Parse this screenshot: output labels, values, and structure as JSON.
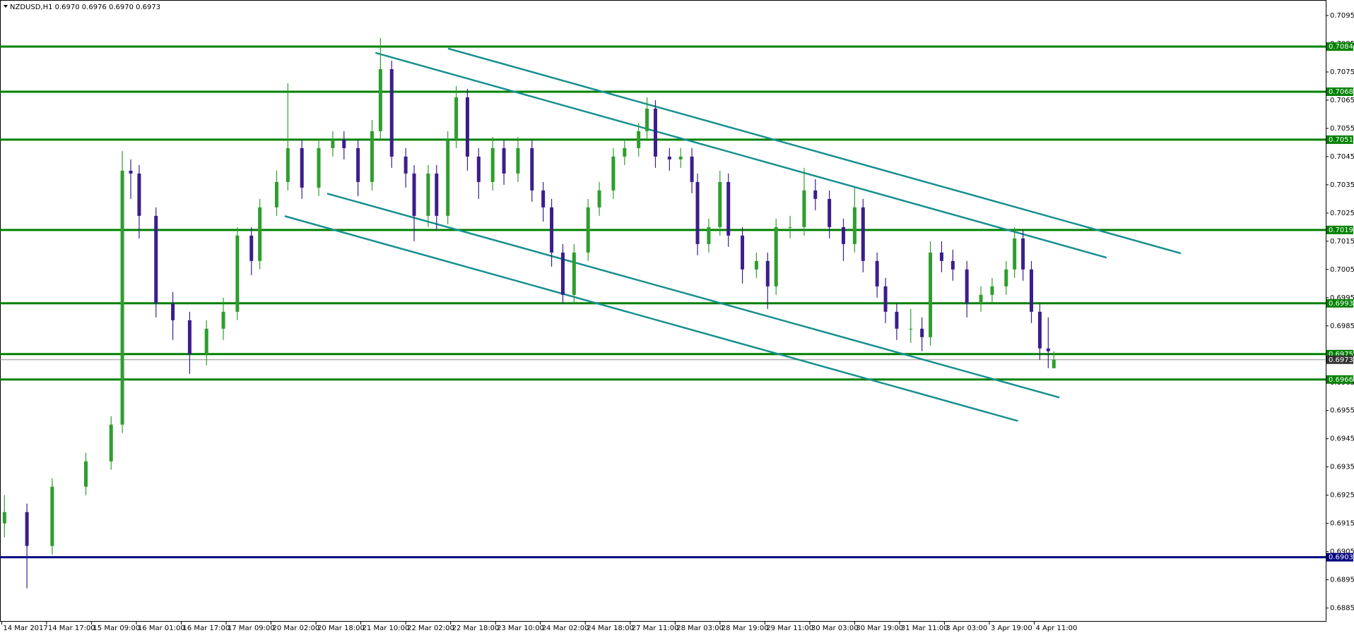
{
  "chart_data": {
    "type": "candlestick",
    "title": "NZDUSD,H1  0.6970 0.6976 0.6970 0.6973",
    "x": [
      1,
      9,
      18,
      30,
      39,
      43,
      46,
      49,
      55,
      61,
      67,
      73,
      79,
      84,
      89,
      92,
      98,
      102,
      107,
      113,
      118,
      122,
      127,
      132,
      135,
      139,
      144,
      147,
      152,
      155,
      159,
      162,
      166,
      170,
      175,
      179,
      184,
      189,
      193,
      196,
      200,
      204,
      209,
      213,
      218,
      222,
      227,
      230,
      233,
      238,
      242,
      246,
      248,
      252,
      256,
      259,
      264,
      269,
      273,
      276,
      281,
      286,
      290,
      295,
      300,
      304,
      307,
      312,
      315,
      319,
      324,
      328,
      331,
      335,
      339,
      344,
      349,
      353,
      358,
      361,
      364,
      367,
      370,
      373,
      375
    ],
    "open": [
      0.6915,
      0.6919,
      0.6907,
      0.6928,
      0.6937,
      0.695,
      0.704,
      0.7039,
      0.7024,
      0.6993,
      0.6987,
      0.6975,
      0.6984,
      0.699,
      0.7017,
      0.7008,
      0.7027,
      0.7036,
      0.7048,
      0.7034,
      0.7048,
      0.7051,
      0.7048,
      0.7036,
      0.7054,
      0.7076,
      0.7045,
      0.7039,
      0.7024,
      0.7039,
      0.7024,
      0.7051,
      0.7066,
      0.7045,
      0.7036,
      0.7048,
      0.7039,
      0.7048,
      0.7033,
      0.7027,
      0.7011,
      0.6996,
      0.7011,
      0.7027,
      0.7033,
      0.7045,
      0.7048,
      0.7054,
      0.7062,
      0.7045,
      0.7044,
      0.7045,
      0.7036,
      0.7014,
      0.702,
      0.7036,
      0.7017,
      0.7005,
      0.7008,
      0.6999,
      0.702,
      0.702,
      0.7033,
      0.703,
      0.702,
      0.7014,
      0.7027,
      0.7008,
      0.6999,
      0.699,
      0.6984,
      0.6984,
      0.6981,
      0.7011,
      0.7008,
      0.7005,
      0.6993,
      0.6996,
      0.6999,
      0.7005,
      0.7016,
      0.7005,
      0.699,
      0.6977,
      0.697
    ],
    "high": [
      0.6925,
      0.6922,
      0.6931,
      0.694,
      0.6953,
      0.7047,
      0.7044,
      0.7042,
      0.7027,
      0.6997,
      0.699,
      0.6987,
      0.6995,
      0.702,
      0.702,
      0.703,
      0.704,
      0.7071,
      0.7051,
      0.7051,
      0.7054,
      0.7054,
      0.7051,
      0.7058,
      0.7087,
      0.7079,
      0.7048,
      0.7042,
      0.7042,
      0.7042,
      0.7054,
      0.707,
      0.7069,
      0.7048,
      0.7052,
      0.7051,
      0.7052,
      0.7051,
      0.7036,
      0.703,
      0.7014,
      0.7014,
      0.703,
      0.7036,
      0.7048,
      0.7051,
      0.7057,
      0.7066,
      0.7065,
      0.7048,
      0.7048,
      0.7048,
      0.7039,
      0.7023,
      0.704,
      0.7039,
      0.702,
      0.7011,
      0.7011,
      0.7023,
      0.7024,
      0.7041,
      0.7037,
      0.7033,
      0.7023,
      0.7034,
      0.703,
      0.7011,
      0.7002,
      0.6993,
      0.6991,
      0.6988,
      0.7015,
      0.7015,
      0.7012,
      0.7008,
      0.6999,
      0.7002,
      0.7008,
      0.702,
      0.7019,
      0.7008,
      0.6993,
      0.6988,
      0.6976
    ],
    "low": [
      0.691,
      0.6892,
      0.6904,
      0.6925,
      0.6934,
      0.6947,
      0.703,
      0.7016,
      0.6988,
      0.698,
      0.6968,
      0.6971,
      0.698,
      0.6987,
      0.7003,
      0.7005,
      0.7024,
      0.7033,
      0.703,
      0.7031,
      0.7045,
      0.7044,
      0.7031,
      0.7033,
      0.7051,
      0.7041,
      0.7034,
      0.7015,
      0.702,
      0.7019,
      0.7021,
      0.7048,
      0.704,
      0.703,
      0.7033,
      0.7035,
      0.7036,
      0.7029,
      0.7022,
      0.7006,
      0.6993,
      0.6993,
      0.7008,
      0.7024,
      0.703,
      0.7042,
      0.7045,
      0.7051,
      0.7041,
      0.704,
      0.7041,
      0.7032,
      0.701,
      0.7011,
      0.7017,
      0.7013,
      0.7,
      0.7002,
      0.6991,
      0.6996,
      0.7016,
      0.7017,
      0.7026,
      0.7016,
      0.7008,
      0.7011,
      0.7004,
      0.6995,
      0.6986,
      0.698,
      0.6979,
      0.6976,
      0.6978,
      0.7004,
      0.7001,
      0.6988,
      0.699,
      0.6993,
      0.6996,
      0.7002,
      0.7001,
      0.6986,
      0.6973,
      0.697,
      0.697
    ],
    "close": [
      0.6919,
      0.6907,
      0.6928,
      0.6937,
      0.695,
      0.704,
      0.7039,
      0.7024,
      0.6993,
      0.6987,
      0.6975,
      0.6984,
      0.699,
      0.7017,
      0.7008,
      0.7027,
      0.7036,
      0.7048,
      0.7034,
      0.7048,
      0.7051,
      0.7048,
      0.7036,
      0.7054,
      0.7076,
      0.7045,
      0.7039,
      0.7024,
      0.7039,
      0.7024,
      0.7051,
      0.7066,
      0.7045,
      0.7036,
      0.7048,
      0.7039,
      0.7048,
      0.7033,
      0.7027,
      0.7011,
      0.6996,
      0.7011,
      0.7027,
      0.7033,
      0.7045,
      0.7048,
      0.7054,
      0.7062,
      0.7045,
      0.7044,
      0.7045,
      0.7036,
      0.7014,
      0.702,
      0.7036,
      0.7017,
      0.7005,
      0.7008,
      0.6999,
      0.702,
      0.702,
      0.7033,
      0.703,
      0.702,
      0.7014,
      0.7027,
      0.7008,
      0.6999,
      0.699,
      0.6984,
      0.6984,
      0.6981,
      0.7011,
      0.7008,
      0.7005,
      0.6993,
      0.6996,
      0.6999,
      0.7005,
      0.7016,
      0.7005,
      0.699,
      0.6977,
      0.6976,
      0.6973
    ],
    "up_color": "#2e9e2e",
    "down_color": "#3b1e8c",
    "xlim": [
      -0.6,
      471.9
    ],
    "xticks": [
      {
        "value": 0,
        "label": "14 Mar 2017"
      },
      {
        "value": 16,
        "label": "14 Mar 17:00"
      },
      {
        "value": 32,
        "label": "15 Mar 09:00"
      },
      {
        "value": 48,
        "label": "16 Mar 01:00"
      },
      {
        "value": 64,
        "label": "16 Mar 17:00"
      },
      {
        "value": 80,
        "label": "17 Mar 09:00"
      },
      {
        "value": 96,
        "label": "20 Mar 02:00"
      },
      {
        "value": 112,
        "label": "20 Mar 18:00"
      },
      {
        "value": 128,
        "label": "21 Mar 10:00"
      },
      {
        "value": 144,
        "label": "22 Mar 02:00"
      },
      {
        "value": 160,
        "label": "22 Mar 18:00"
      },
      {
        "value": 176,
        "label": "23 Mar 10:00"
      },
      {
        "value": 192,
        "label": "24 Mar 02:00"
      },
      {
        "value": 208,
        "label": "24 Mar 18:00"
      },
      {
        "value": 224,
        "label": "27 Mar 11:00"
      },
      {
        "value": 240,
        "label": "28 Mar 03:00"
      },
      {
        "value": 256,
        "label": "28 Mar 19:00"
      },
      {
        "value": 272,
        "label": "29 Mar 11:00"
      },
      {
        "value": 288,
        "label": "30 Mar 03:00"
      },
      {
        "value": 304,
        "label": "30 Mar 19:00"
      },
      {
        "value": 320,
        "label": "31 Mar 11:00"
      },
      {
        "value": 336,
        "label": "3 Apr 03:00"
      },
      {
        "value": 352,
        "label": "3 Apr 19:00"
      },
      {
        "value": 368,
        "label": "4 Apr 11:00"
      }
    ],
    "ylim": [
      0.68804,
      0.70995
    ],
    "yticks": [
      0.6885,
      0.6895,
      0.6905,
      0.6915,
      0.6925,
      0.6935,
      0.6945,
      0.6955,
      0.6965,
      0.6975,
      0.6985,
      0.6995,
      0.7005,
      0.7015,
      0.7025,
      0.7035,
      0.7045,
      0.7055,
      0.7065,
      0.7075,
      0.7085,
      0.7095
    ],
    "levels": [
      {
        "value": 0.7084,
        "color": "#008000"
      },
      {
        "value": 0.7068,
        "color": "#008000"
      },
      {
        "value": 0.7051,
        "color": "#008000"
      },
      {
        "value": 0.7019,
        "color": "#008000"
      },
      {
        "value": 0.6993,
        "color": "#008000"
      },
      {
        "value": 0.6975,
        "color": "#008000"
      },
      {
        "value": 0.6966,
        "color": "#008000"
      },
      {
        "value": 0.6903,
        "color": "#000080"
      }
    ],
    "current_price": {
      "value": 0.6973,
      "color": "#909090"
    },
    "trendlines": [
      {
        "x": [
          133.2,
          393.8
        ],
        "y": [
          0.70818,
          0.70092
        ]
      },
      {
        "x": [
          159.1,
          420.3
        ],
        "y": [
          0.70833,
          0.70107
        ]
      },
      {
        "x": [
          116.0,
          377.0
        ],
        "y": [
          0.70319,
          0.69596
        ]
      },
      {
        "x": [
          100.9,
          362.2
        ],
        "y": [
          0.70239,
          0.69513
        ]
      }
    ],
    "trend_color": "#17908f"
  }
}
